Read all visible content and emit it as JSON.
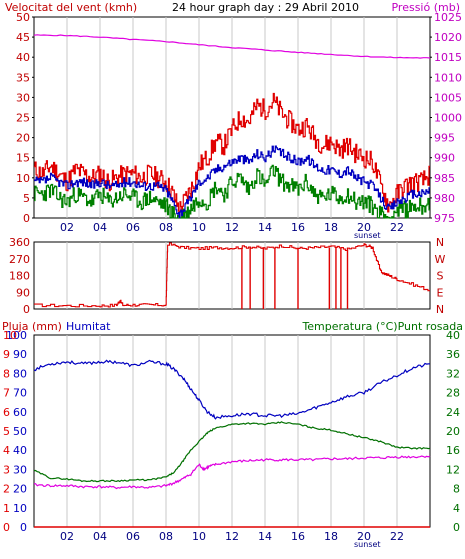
{
  "colors": {
    "wind_gust": "#e00000",
    "wind_avg": "#0000c0",
    "wind_low": "#008000",
    "pressure": "#e000e0",
    "direction": "#e00000",
    "humidity": "#0000c0",
    "temperature": "#007000",
    "dewpoint": "#e000e0",
    "rain": "#e00000",
    "grid": "#c8c8c8",
    "axis_left": "#c00000",
    "axis_right": "#c000c0",
    "axis_temp": "#007000"
  },
  "chart_data": [
    {
      "id": "wind_pressure",
      "type": "line",
      "title": "24 hour graph day : 29 Abril 2010",
      "ylabel_left": "Velocitat del vent (kmh)",
      "ylabel_right": "Pressió (mb)",
      "ylim": [
        0,
        50
      ],
      "yticks": [
        "0",
        "5",
        "10",
        "15",
        "20",
        "25",
        "30",
        "35",
        "40",
        "45",
        "50"
      ],
      "ylim_right": [
        975,
        1025
      ],
      "yticks_right": [
        "975",
        "980",
        "985",
        "990",
        "995",
        "1000",
        "1005",
        "1010",
        "1015",
        "1020",
        "1025"
      ],
      "xlim": [
        0,
        24
      ],
      "xticks": [
        "02",
        "04",
        "06",
        "08",
        "10",
        "12",
        "14",
        "16",
        "18",
        "20",
        "22"
      ],
      "sunset_label": "sunset",
      "sunset_hour": 20.2,
      "grid": true,
      "series": [
        {
          "key": "gust",
          "x": [
            0,
            0.5,
            1,
            1.5,
            2,
            2.5,
            3,
            3.5,
            4,
            4.5,
            5,
            5.5,
            6,
            6.5,
            7,
            7.5,
            8,
            8.4,
            8.8,
            9.2,
            9.6,
            10,
            10.5,
            11,
            11.5,
            12,
            12.5,
            13,
            13.5,
            14,
            14.5,
            15,
            15.5,
            16,
            16.5,
            17,
            17.5,
            18,
            18.5,
            19,
            19.5,
            20,
            20.5,
            21,
            21.5,
            22,
            22.5,
            23,
            23.5,
            24
          ],
          "values": [
            12,
            11,
            13,
            11,
            9,
            12,
            11,
            10,
            11,
            9,
            10,
            11,
            11,
            10,
            11,
            10,
            9,
            6,
            2,
            5,
            8,
            13,
            15,
            19,
            18,
            22,
            25,
            24,
            28,
            27,
            29,
            26,
            24,
            22,
            23,
            20,
            18,
            19,
            17,
            18,
            16,
            15,
            14,
            8,
            3,
            6,
            8,
            9,
            9,
            11
          ]
        },
        {
          "key": "average",
          "x": [
            0,
            0.5,
            1,
            1.5,
            2,
            2.5,
            3,
            3.5,
            4,
            4.5,
            5,
            5.5,
            6,
            6.5,
            7,
            7.5,
            8,
            8.4,
            8.8,
            9.2,
            9.6,
            10,
            10.5,
            11,
            11.5,
            12,
            12.5,
            13,
            13.5,
            14,
            14.5,
            15,
            15.5,
            16,
            16.5,
            17,
            17.5,
            18,
            18.5,
            19,
            19.5,
            20,
            20.5,
            21,
            21.5,
            22,
            22.5,
            23,
            23.5,
            24
          ],
          "values": [
            9,
            9,
            10,
            9,
            8,
            9,
            9,
            8,
            9,
            8,
            8,
            9,
            9,
            8,
            8,
            8,
            7,
            4,
            1,
            3,
            6,
            9,
            10,
            12,
            13,
            14,
            15,
            14,
            16,
            15,
            17,
            16,
            15,
            14,
            15,
            13,
            12,
            12,
            11,
            12,
            10,
            9,
            8,
            5,
            2,
            4,
            5,
            6,
            6,
            7
          ]
        },
        {
          "key": "low",
          "x": [
            0,
            0.5,
            1,
            1.5,
            2,
            2.5,
            3,
            3.5,
            4,
            4.5,
            5,
            5.5,
            6,
            6.5,
            7,
            7.5,
            8,
            8.4,
            8.8,
            9.2,
            9.6,
            10,
            10.5,
            11,
            11.5,
            12,
            12.5,
            13,
            13.5,
            14,
            14.5,
            15,
            15.5,
            16,
            16.5,
            17,
            17.5,
            18,
            18.5,
            19,
            19.5,
            20,
            20.5,
            21,
            21.5,
            22,
            22.5,
            23,
            23.5,
            24
          ],
          "values": [
            6,
            6,
            7,
            5,
            4,
            6,
            5,
            4,
            6,
            4,
            5,
            6,
            5,
            4,
            5,
            4,
            3,
            1,
            0,
            1,
            3,
            5,
            4,
            8,
            6,
            9,
            10,
            7,
            11,
            8,
            12,
            9,
            8,
            7,
            9,
            6,
            5,
            6,
            5,
            6,
            4,
            4,
            3,
            1,
            0,
            2,
            2,
            3,
            3,
            4
          ]
        },
        {
          "key": "pressure",
          "x": [
            0,
            2,
            4,
            6,
            8,
            10,
            12,
            14,
            16,
            18,
            20,
            22,
            24
          ],
          "values": [
            1020.5,
            1020.4,
            1020.0,
            1019.4,
            1018.9,
            1018.1,
            1017.4,
            1016.8,
            1016.2,
            1015.7,
            1015.2,
            1014.9,
            1014.8
          ]
        }
      ]
    },
    {
      "id": "wind_direction",
      "type": "line",
      "ylim": [
        0,
        360
      ],
      "yticks": [
        "0",
        "90",
        "180",
        "270",
        "360"
      ],
      "compass_labels": [
        "N",
        "W",
        "S",
        "E",
        "N"
      ],
      "xlim": [
        0,
        24
      ],
      "x": [
        0,
        2,
        4,
        5,
        5.2,
        5.4,
        6,
        7,
        8,
        8.1,
        9,
        10,
        11,
        12,
        13,
        14,
        15,
        16,
        17,
        18,
        19,
        20,
        20.5,
        21,
        21.5,
        22,
        23,
        24
      ],
      "values": [
        20,
        18,
        18,
        20,
        45,
        20,
        22,
        22,
        22,
        350,
        330,
        325,
        330,
        328,
        335,
        325,
        340,
        325,
        330,
        335,
        320,
        345,
        330,
        200,
        180,
        160,
        130,
        100
      ],
      "spikes_x": [
        12.6,
        13.1,
        13.9,
        14.6,
        16.0,
        17.9,
        18.3,
        18.6,
        19.0
      ],
      "spikes_to": 0
    },
    {
      "id": "humidity_temperature",
      "type": "line",
      "ylabel_left": "Pluja (mm)",
      "ylabel_humidity": "Humitat",
      "ylabel_right": "Temperatura (°C)Punt rosada",
      "ylim_left": [
        0,
        10
      ],
      "yticks_rain": [
        "0",
        "1",
        "2",
        "3",
        "4",
        "5",
        "6",
        "7",
        "8",
        "9",
        "10"
      ],
      "yticks_humidity": [
        "0",
        "10",
        "20",
        "30",
        "40",
        "50",
        "60",
        "70",
        "80",
        "90",
        "100"
      ],
      "ylim_right": [
        0,
        40
      ],
      "yticks_right": [
        "0",
        "4",
        "8",
        "12",
        "16",
        "20",
        "24",
        "28",
        "32",
        "36",
        "40"
      ],
      "xlim": [
        0,
        24
      ],
      "xticks": [
        "02",
        "04",
        "06",
        "08",
        "10",
        "12",
        "14",
        "16",
        "18",
        "20",
        "22"
      ],
      "sunset_label": "sunset",
      "grid": true,
      "series": [
        {
          "key": "humidity",
          "x": [
            0,
            1,
            2,
            3,
            4,
            5,
            6,
            7,
            8,
            8.5,
            9,
            9.5,
            10,
            10.5,
            11,
            12,
            13,
            14,
            15,
            16,
            17,
            18,
            19,
            20,
            21,
            22,
            23,
            24
          ],
          "values": [
            82,
            85,
            86,
            85,
            86,
            86,
            84,
            86,
            85,
            82,
            78,
            72,
            66,
            60,
            57,
            58,
            59,
            58,
            58,
            59,
            62,
            65,
            68,
            70,
            75,
            79,
            83,
            85
          ]
        },
        {
          "key": "temperature",
          "x": [
            0,
            1,
            2,
            3,
            4,
            5,
            6,
            7,
            8,
            8.5,
            9,
            9.5,
            10,
            10.5,
            11,
            12,
            13,
            14,
            15,
            16,
            17,
            18,
            19,
            20,
            21,
            22,
            23,
            24
          ],
          "values": [
            11.8,
            10.2,
            10.0,
            9.6,
            9.6,
            9.6,
            9.8,
            9.8,
            10.4,
            11.4,
            13.6,
            16.0,
            17.8,
            19.6,
            20.6,
            21.4,
            21.6,
            21.4,
            21.8,
            21.4,
            20.6,
            20.2,
            19.4,
            18.6,
            17.8,
            16.6,
            16.4,
            16.4
          ]
        },
        {
          "key": "dewpoint",
          "x": [
            0,
            1,
            2,
            3,
            4,
            5,
            6,
            7,
            8,
            8.5,
            9,
            9.5,
            10,
            10.3,
            10.6,
            11,
            12,
            13,
            14,
            15,
            16,
            17,
            18,
            19,
            20,
            21,
            22,
            23,
            24
          ],
          "values": [
            8.8,
            8.6,
            8.6,
            8.4,
            8.4,
            8.2,
            8.4,
            8.2,
            8.6,
            9.2,
            10.0,
            11.0,
            13.0,
            12.0,
            12.6,
            13.0,
            13.6,
            13.8,
            14.0,
            14.0,
            14.0,
            14.0,
            14.2,
            14.2,
            14.4,
            14.4,
            14.6,
            14.6,
            14.8
          ]
        },
        {
          "key": "rain",
          "x": [
            0,
            24
          ],
          "values": [
            0,
            0
          ]
        }
      ]
    }
  ]
}
